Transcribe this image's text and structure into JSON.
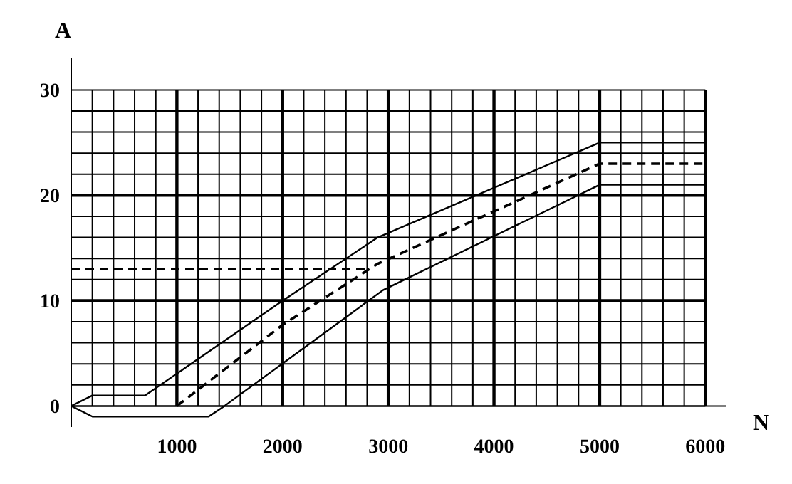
{
  "chart_data": {
    "type": "line",
    "xlabel": "N",
    "ylabel": "A",
    "xlim": [
      0,
      6200
    ],
    "ylim": [
      -2,
      33
    ],
    "xticks": [
      {
        "value": 0,
        "label": null
      },
      {
        "value": 200,
        "label": null
      },
      {
        "value": 400,
        "label": null
      },
      {
        "value": 600,
        "label": null
      },
      {
        "value": 800,
        "label": null
      },
      1000,
      {
        "value": 1200,
        "label": null
      },
      {
        "value": 1400,
        "label": null
      },
      {
        "value": 1600,
        "label": null
      },
      {
        "value": 1800,
        "label": null
      },
      2000,
      {
        "value": 2200,
        "label": null
      },
      {
        "value": 2400,
        "label": null
      },
      {
        "value": 2600,
        "label": null
      },
      {
        "value": 2800,
        "label": null
      },
      3000,
      {
        "value": 3200,
        "label": null
      },
      {
        "value": 3400,
        "label": null
      },
      {
        "value": 3600,
        "label": null
      },
      {
        "value": 3800,
        "label": null
      },
      4000,
      {
        "value": 4200,
        "label": null
      },
      {
        "value": 4400,
        "label": null
      },
      {
        "value": 4600,
        "label": null
      },
      {
        "value": 4800,
        "label": null
      },
      5000,
      {
        "value": 5200,
        "label": null
      },
      {
        "value": 5400,
        "label": null
      },
      {
        "value": 5600,
        "label": null
      },
      {
        "value": 5800,
        "label": null
      },
      6000
    ],
    "yticks": [
      0,
      {
        "value": 2,
        "label": null
      },
      {
        "value": 4,
        "label": null
      },
      {
        "value": 6,
        "label": null
      },
      {
        "value": 8,
        "label": null
      },
      10,
      {
        "value": 12,
        "label": null
      },
      {
        "value": 14,
        "label": null
      },
      {
        "value": 16,
        "label": null
      },
      {
        "value": 18,
        "label": null
      },
      20,
      {
        "value": 22,
        "label": null
      },
      {
        "value": 24,
        "label": null
      },
      {
        "value": 26,
        "label": null
      },
      {
        "value": 28,
        "label": null
      },
      30
    ],
    "grid": true,
    "marker": "none",
    "series": [
      {
        "color": "#000000",
        "line_style": "solid",
        "x": [
          0,
          200,
          700,
          2000,
          2900,
          5000,
          6000
        ],
        "values": [
          0,
          1,
          1,
          10,
          16,
          25,
          25
        ]
      },
      {
        "color": "#000000",
        "line_style": "dashed",
        "x": [
          0,
          2800
        ],
        "values": [
          13,
          13
        ]
      },
      {
        "color": "#000000",
        "line_style": "dashed",
        "x": [
          1000,
          2000,
          2900,
          5000,
          6000
        ],
        "values": [
          0,
          7.7,
          13.5,
          23,
          23
        ]
      },
      {
        "color": "#000000",
        "line_style": "solid",
        "x": [
          0,
          200,
          1300,
          1450,
          2950,
          5000,
          6000
        ],
        "values": [
          0,
          -1,
          -1,
          0,
          11,
          21,
          21
        ]
      }
    ]
  }
}
